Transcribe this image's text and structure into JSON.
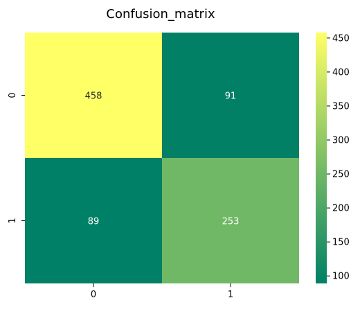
{
  "chart_data": {
    "type": "heatmap",
    "title": "Confusion_matrix",
    "x_tick_labels": [
      "0",
      "1"
    ],
    "y_tick_labels": [
      "0",
      "1"
    ],
    "values": [
      [
        458,
        91
      ],
      [
        89,
        253
      ]
    ],
    "cell_labels": [
      [
        "458",
        "91"
      ],
      [
        "89",
        "253"
      ]
    ],
    "colormap": "summer",
    "colorbar": {
      "min": 89,
      "max": 458,
      "ticks": [
        100,
        150,
        200,
        250,
        300,
        350,
        400,
        450
      ],
      "tick_labels": [
        "100",
        "150",
        "200",
        "250",
        "300",
        "350",
        "400",
        "450"
      ]
    },
    "annotation_colors": {
      "on_light": "#262626",
      "on_dark": "#ffffff"
    }
  }
}
